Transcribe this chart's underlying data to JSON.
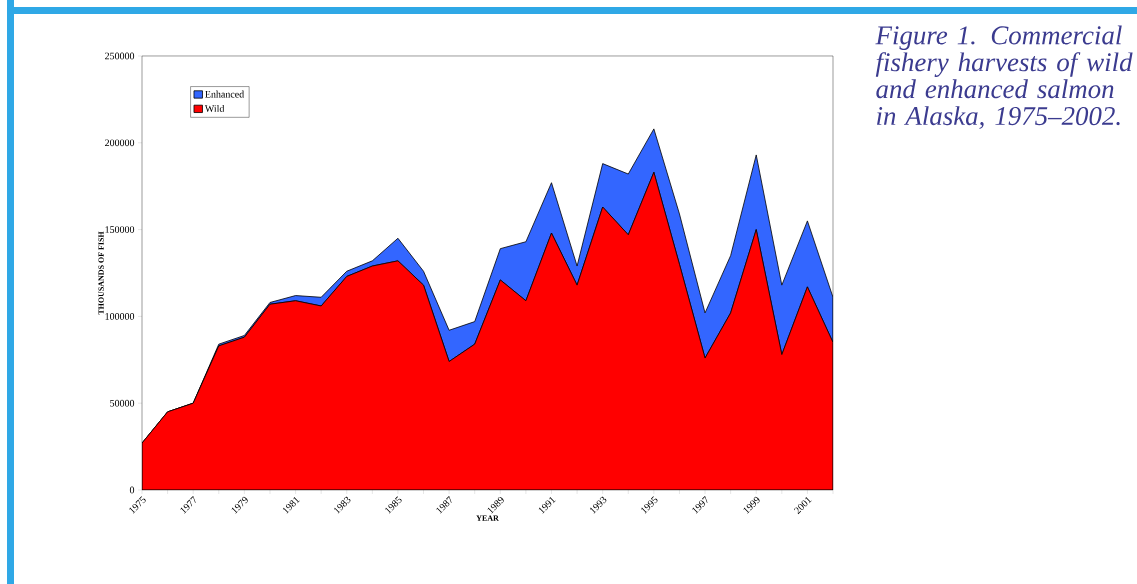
{
  "chart_data": {
    "type": "area",
    "stacked": true,
    "title": "Figure 1. Commercial fishery harvests of wild and enhanced salmon in Alaska, 1975–2002.",
    "xlabel": "YEAR",
    "ylabel": "THOUSANDS OF FISH",
    "x": [
      1975,
      1976,
      1977,
      1978,
      1979,
      1980,
      1981,
      1982,
      1983,
      1984,
      1985,
      1986,
      1987,
      1988,
      1989,
      1990,
      1991,
      1992,
      1993,
      1994,
      1995,
      1996,
      1997,
      1998,
      1999,
      2000,
      2001,
      2002
    ],
    "series": [
      {
        "name": "Wild",
        "color": "#ff0000",
        "values": [
          27000,
          45000,
          50000,
          83000,
          88000,
          107000,
          109000,
          106000,
          123000,
          129000,
          132000,
          118000,
          74000,
          84000,
          121000,
          109000,
          148000,
          118000,
          163000,
          147000,
          183000,
          130000,
          76000,
          102000,
          150000,
          78000,
          117000,
          85000
        ]
      },
      {
        "name": "Enhanced",
        "color": "#3366ff",
        "values": [
          0,
          0,
          0,
          1000,
          1000,
          1000,
          3000,
          5000,
          3000,
          3000,
          13000,
          8000,
          18000,
          13000,
          18000,
          34000,
          29000,
          11000,
          25000,
          35000,
          25000,
          29000,
          26000,
          33000,
          43000,
          40000,
          38000,
          26000
        ]
      }
    ],
    "xlim": [
      1975,
      2002
    ],
    "xticks": [
      {
        "value": 1975,
        "label": "1975"
      },
      {
        "value": 1976,
        "label": null
      },
      {
        "value": 1977,
        "label": "1977"
      },
      {
        "value": 1978,
        "label": null
      },
      {
        "value": 1979,
        "label": "1979"
      },
      {
        "value": 1980,
        "label": null
      },
      {
        "value": 1981,
        "label": "1981"
      },
      {
        "value": 1982,
        "label": null
      },
      {
        "value": 1983,
        "label": "1983"
      },
      {
        "value": 1984,
        "label": null
      },
      {
        "value": 1985,
        "label": "1985"
      },
      {
        "value": 1986,
        "label": null
      },
      {
        "value": 1987,
        "label": "1987"
      },
      {
        "value": 1988,
        "label": null
      },
      {
        "value": 1989,
        "label": "1989"
      },
      {
        "value": 1990,
        "label": null
      },
      {
        "value": 1991,
        "label": "1991"
      },
      {
        "value": 1992,
        "label": null
      },
      {
        "value": 1993,
        "label": "1993"
      },
      {
        "value": 1994,
        "label": null
      },
      {
        "value": 1995,
        "label": "1995"
      },
      {
        "value": 1996,
        "label": null
      },
      {
        "value": 1997,
        "label": "1997"
      },
      {
        "value": 1998,
        "label": null
      },
      {
        "value": 1999,
        "label": "1999"
      },
      {
        "value": 2000,
        "label": null
      },
      {
        "value": 2001,
        "label": "2001"
      },
      {
        "value": 2002,
        "label": null
      }
    ],
    "ylim": [
      0,
      250000
    ],
    "yticks": [
      0,
      50000,
      100000,
      150000,
      200000,
      250000
    ],
    "legend": "top left",
    "grid": false
  }
}
